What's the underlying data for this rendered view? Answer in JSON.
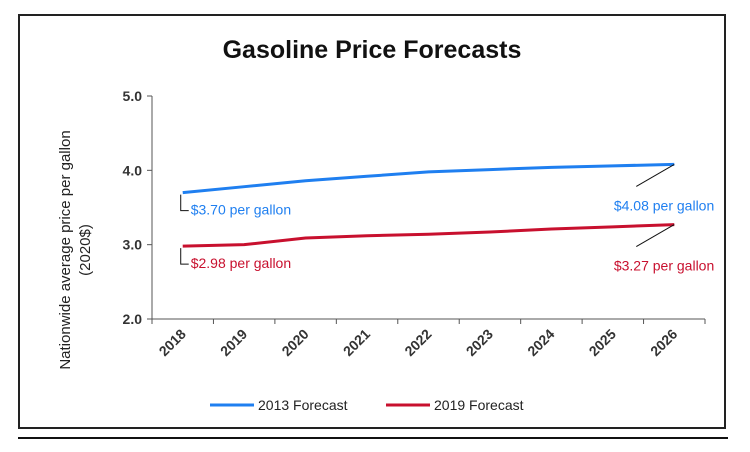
{
  "chart_data": {
    "type": "line",
    "title": "Gasoline Price Forecasts",
    "ylabel_lines": [
      "Nationwide average price per gallon",
      "(2020$)"
    ],
    "xlabel": "",
    "categories": [
      "2018",
      "2019",
      "2020",
      "2021",
      "2022",
      "2023",
      "2024",
      "2025",
      "2026"
    ],
    "ylim": [
      2.0,
      5.0
    ],
    "yticks": [
      "2.0",
      "3.0",
      "4.0",
      "5.0"
    ],
    "grid": false,
    "legend_position": "bottom",
    "series": [
      {
        "name": "2013 Forecast",
        "color": "#1f7ff0",
        "values": [
          3.7,
          3.78,
          3.86,
          3.92,
          3.98,
          4.01,
          4.04,
          4.06,
          4.08
        ]
      },
      {
        "name": "2019 Forecast",
        "color": "#c8102e",
        "values": [
          2.98,
          3.0,
          3.09,
          3.12,
          3.14,
          3.17,
          3.21,
          3.24,
          3.27
        ]
      }
    ],
    "annotations": [
      {
        "text": "$3.70 per gallon",
        "series": 0,
        "index": 0,
        "color": "#1f7ff0"
      },
      {
        "text": "$4.08 per gallon",
        "series": 0,
        "index": 8,
        "color": "#1f7ff0"
      },
      {
        "text": "$2.98 per gallon",
        "series": 1,
        "index": 0,
        "color": "#c8102e"
      },
      {
        "text": "$3.27 per gallon",
        "series": 1,
        "index": 8,
        "color": "#c8102e"
      }
    ]
  }
}
